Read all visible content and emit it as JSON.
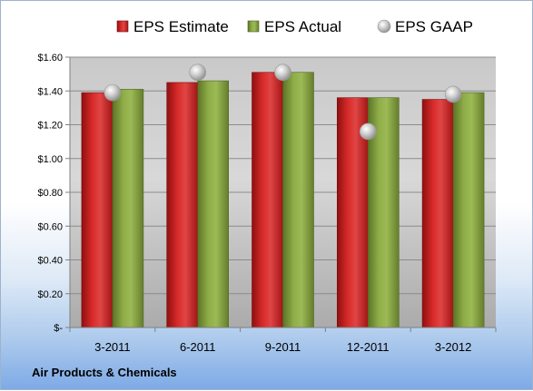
{
  "chart_data": {
    "type": "bar",
    "categories": [
      "3-2011",
      "6-2011",
      "9-2011",
      "12-2011",
      "3-2012"
    ],
    "series": [
      {
        "name": "EPS Estimate",
        "values": [
          1.39,
          1.45,
          1.51,
          1.36,
          1.35
        ],
        "color": "#cc1f1f",
        "kind": "bar"
      },
      {
        "name": "EPS Actual",
        "values": [
          1.41,
          1.46,
          1.51,
          1.36,
          1.39
        ],
        "color": "#7d9a3c",
        "kind": "bar"
      },
      {
        "name": "EPS GAAP",
        "values": [
          1.39,
          1.51,
          1.51,
          1.16,
          1.38
        ],
        "color": "#b8b8b8",
        "kind": "marker"
      }
    ],
    "y_ticks": [
      "$-",
      "$0.20",
      "$0.40",
      "$0.60",
      "$0.80",
      "$1.00",
      "$1.20",
      "$1.40",
      "$1.60"
    ],
    "ylim": [
      0,
      1.6
    ],
    "grid": true,
    "legend_position": "top"
  },
  "footer": {
    "company": "Air Products & Chemicals"
  }
}
